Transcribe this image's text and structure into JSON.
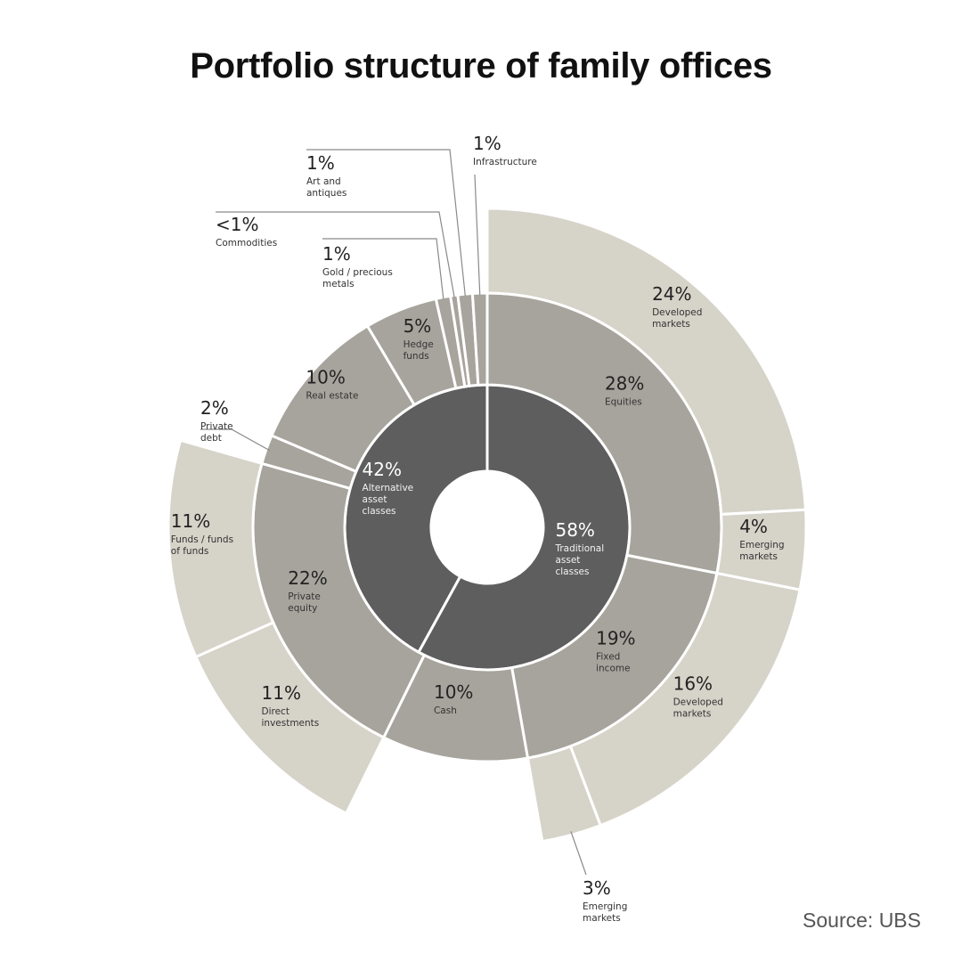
{
  "title": "Portfolio structure of family offices",
  "source": "Source: UBS",
  "colors": {
    "inner": "#5e5e5e",
    "middle": "#a7a49d",
    "outer": "#d6d3c9",
    "stroke": "#ffffff",
    "leader": "#8a8a8a"
  },
  "chart_data": {
    "type": "sunburst",
    "title": "Portfolio structure of family offices",
    "rings": [
      {
        "level": "inner",
        "segments": [
          {
            "pct": "58%",
            "value": 58,
            "label": [
              "Traditional",
              "asset",
              "classes"
            ]
          },
          {
            "pct": "42%",
            "value": 42,
            "label": [
              "Alternative",
              "asset",
              "classes"
            ]
          }
        ]
      },
      {
        "level": "middle",
        "segments": [
          {
            "pct": "28%",
            "value": 28,
            "label": [
              "Equities"
            ]
          },
          {
            "pct": "19%",
            "value": 19,
            "label": [
              "Fixed",
              "income"
            ]
          },
          {
            "pct": "10%",
            "value": 10,
            "label": [
              "Cash"
            ]
          },
          {
            "pct": "22%",
            "value": 22,
            "label": [
              "Private",
              "equity"
            ]
          },
          {
            "pct": "2%",
            "value": 2,
            "label": [
              "Private",
              "debt"
            ]
          },
          {
            "pct": "10%",
            "value": 10,
            "label": [
              "Real estate"
            ]
          },
          {
            "pct": "5%",
            "value": 5,
            "label": [
              "Hedge",
              "funds"
            ]
          },
          {
            "pct": "1%",
            "value": 1,
            "label": [
              "Gold / precious",
              "metals"
            ]
          },
          {
            "pct": "<1%",
            "value": 0.5,
            "label": [
              "Commodities"
            ]
          },
          {
            "pct": "1%",
            "value": 1,
            "label": [
              "Art and",
              "antiques"
            ]
          },
          {
            "pct": "1%",
            "value": 1,
            "label": [
              "Infrastructure"
            ]
          }
        ]
      },
      {
        "level": "outer",
        "segments": [
          {
            "parent": "Equities",
            "pct": "24%",
            "value": 24,
            "label": [
              "Developed",
              "markets"
            ]
          },
          {
            "parent": "Equities",
            "pct": "4%",
            "value": 4,
            "label": [
              "Emerging",
              "markets"
            ]
          },
          {
            "parent": "Fixed income",
            "pct": "16%",
            "value": 16,
            "label": [
              "Developed",
              "markets"
            ]
          },
          {
            "parent": "Fixed income",
            "pct": "3%",
            "value": 3,
            "label": [
              "Emerging",
              "markets"
            ]
          },
          {
            "parent": "Private equity",
            "pct": "11%",
            "value": 11,
            "label": [
              "Direct",
              "investments"
            ]
          },
          {
            "parent": "Private equity",
            "pct": "11%",
            "value": 11,
            "label": [
              "Funds / funds",
              "of funds"
            ]
          }
        ]
      }
    ]
  }
}
